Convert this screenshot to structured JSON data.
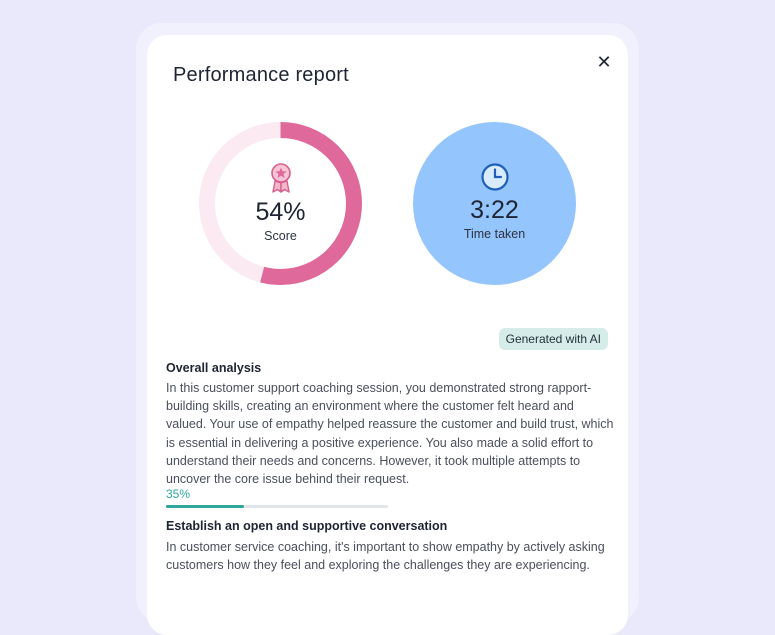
{
  "report": {
    "title": "Performance report",
    "close_icon": "close-icon",
    "score": {
      "value": "54%",
      "label": "Score",
      "fraction": 0.54,
      "icon": "award-badge-icon",
      "ring_color": "#e0699b",
      "track_color": "#fbeaf1"
    },
    "time": {
      "value": "3:22",
      "label": "Time taken",
      "icon": "clock-icon",
      "color": "#95c5fd"
    },
    "ai_tag": "Generated with AI",
    "overall": {
      "title": "Overall analysis",
      "text": "In this customer support coaching session, you demonstrated strong rapport-building skills, creating an environment where the customer felt heard and valued. Your use of empathy helped reassure the customer and build trust, which is essential in delivering a positive experience. You also made a solid effort to understand their needs and concerns. However, it took multiple attempts to uncover the core issue behind their request."
    },
    "criterion": {
      "percent_label": "35%",
      "fraction": 0.35,
      "color": "#2ea79a",
      "title": "Establish an open and supportive conversation",
      "text": "In customer service coaching, it's important to show empathy by actively asking customers how they feel and exploring the challenges they are experiencing."
    }
  }
}
